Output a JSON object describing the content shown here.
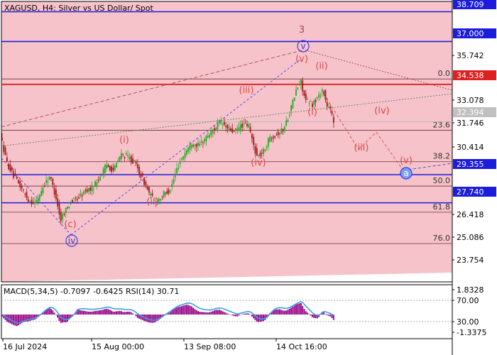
{
  "header": {
    "title": "XAGUSD, H4:  Silver vs US Dollar/ Spot"
  },
  "indicator": {
    "label": "MACD(5,34,5) -0.7097 -0.6425 RSI(14) 30.71"
  },
  "colors": {
    "plot_bg": "#f7c3cb",
    "bull": "#22aa22",
    "bear": "#a01818",
    "blue_level": "#1c1cdc",
    "red_level": "#e02020",
    "wave_red": "#d84848",
    "wave_blue": "#3a3ae0",
    "macd_hist": "#9b0f8c",
    "macd_signal": "#3aa0e8"
  },
  "chart_data": {
    "type": "candlestick",
    "symbol": "XAGUSD",
    "timeframe": "H4",
    "ylim": [
      23.2,
      39.3
    ],
    "price_axis_ticks": [
      "38.709",
      "37.000",
      "35.742",
      "34.538",
      "33.078",
      "32.394",
      "31.746",
      "30.414",
      "29.355",
      "27.740",
      "26.418",
      "25.086",
      "23.754"
    ],
    "x_tick_labels": [
      "16 Jul 2024",
      "15 Aug 00:00",
      "13 Sep 08:00",
      "14 Oct 16:00"
    ],
    "close_path_approx": [
      [
        0,
        31.7
      ],
      [
        10,
        30.0
      ],
      [
        20,
        29.2
      ],
      [
        30,
        28.6
      ],
      [
        40,
        27.9
      ],
      [
        50,
        27.7
      ],
      [
        60,
        28.6
      ],
      [
        70,
        29.3
      ],
      [
        80,
        27.9
      ],
      [
        85,
        26.7
      ],
      [
        90,
        27.2
      ],
      [
        100,
        27.8
      ],
      [
        110,
        28.0
      ],
      [
        120,
        28.4
      ],
      [
        130,
        28.6
      ],
      [
        140,
        29.2
      ],
      [
        150,
        29.9
      ],
      [
        160,
        29.6
      ],
      [
        170,
        30.5
      ],
      [
        180,
        30.4
      ],
      [
        190,
        30.0
      ],
      [
        200,
        29.2
      ],
      [
        210,
        28.3
      ],
      [
        218,
        27.8
      ],
      [
        225,
        28.0
      ],
      [
        232,
        28.3
      ],
      [
        240,
        28.5
      ],
      [
        250,
        29.8
      ],
      [
        260,
        30.6
      ],
      [
        270,
        31.2
      ],
      [
        280,
        31.0
      ],
      [
        290,
        31.5
      ],
      [
        300,
        31.9
      ],
      [
        310,
        32.4
      ],
      [
        320,
        32.0
      ],
      [
        330,
        31.8
      ],
      [
        340,
        32.2
      ],
      [
        350,
        32.2
      ],
      [
        356,
        31.2
      ],
      [
        362,
        30.4
      ],
      [
        370,
        30.6
      ],
      [
        380,
        31.5
      ],
      [
        390,
        31.7
      ],
      [
        400,
        32.0
      ],
      [
        410,
        33.2
      ],
      [
        418,
        34.3
      ],
      [
        424,
        34.7
      ],
      [
        430,
        33.6
      ],
      [
        440,
        33.4
      ],
      [
        448,
        33.8
      ],
      [
        455,
        34.3
      ],
      [
        460,
        33.3
      ],
      [
        466,
        33.0
      ],
      [
        470,
        32.4
      ]
    ],
    "levels": [
      {
        "price": 38.709,
        "color": "blue"
      },
      {
        "price": 37.0,
        "color": "blue"
      },
      {
        "price": 34.538,
        "color": "red"
      },
      {
        "price": 29.355,
        "color": "blue"
      },
      {
        "price": 27.74,
        "color": "blue"
      }
    ],
    "fib_levels": [
      {
        "label": "0.0",
        "price": 34.85
      },
      {
        "label": "23.6",
        "price": 31.9
      },
      {
        "label": "38.2",
        "price": 30.1
      },
      {
        "label": "50.0",
        "price": 28.7
      },
      {
        "label": "61.8",
        "price": 27.2
      },
      {
        "label": "76.0",
        "price": 25.4
      }
    ],
    "wave_labels": [
      {
        "text": "3",
        "style": "plain"
      },
      {
        "text": "v",
        "style": "circle-blue"
      },
      {
        "text": "(v)",
        "style": "red"
      },
      {
        "text": "(ii)",
        "style": "red"
      },
      {
        "text": "(iii)",
        "style": "red"
      },
      {
        "text": "(i)",
        "style": "red"
      },
      {
        "text": "(iv)",
        "style": "red"
      },
      {
        "text": "(iii)",
        "style": "red"
      },
      {
        "text": "(iv)",
        "style": "red"
      },
      {
        "text": "(v)",
        "style": "red"
      },
      {
        "text": "a",
        "style": "circle-blue"
      },
      {
        "text": "(i)",
        "style": "red"
      },
      {
        "text": "(ii)",
        "style": "red"
      },
      {
        "text": "(c)",
        "style": "red"
      },
      {
        "text": "iv",
        "style": "circle-blue"
      }
    ],
    "indicator_axis_ticks": [
      "1.8328",
      "70.00",
      "30.00",
      "-1.3375"
    ]
  }
}
